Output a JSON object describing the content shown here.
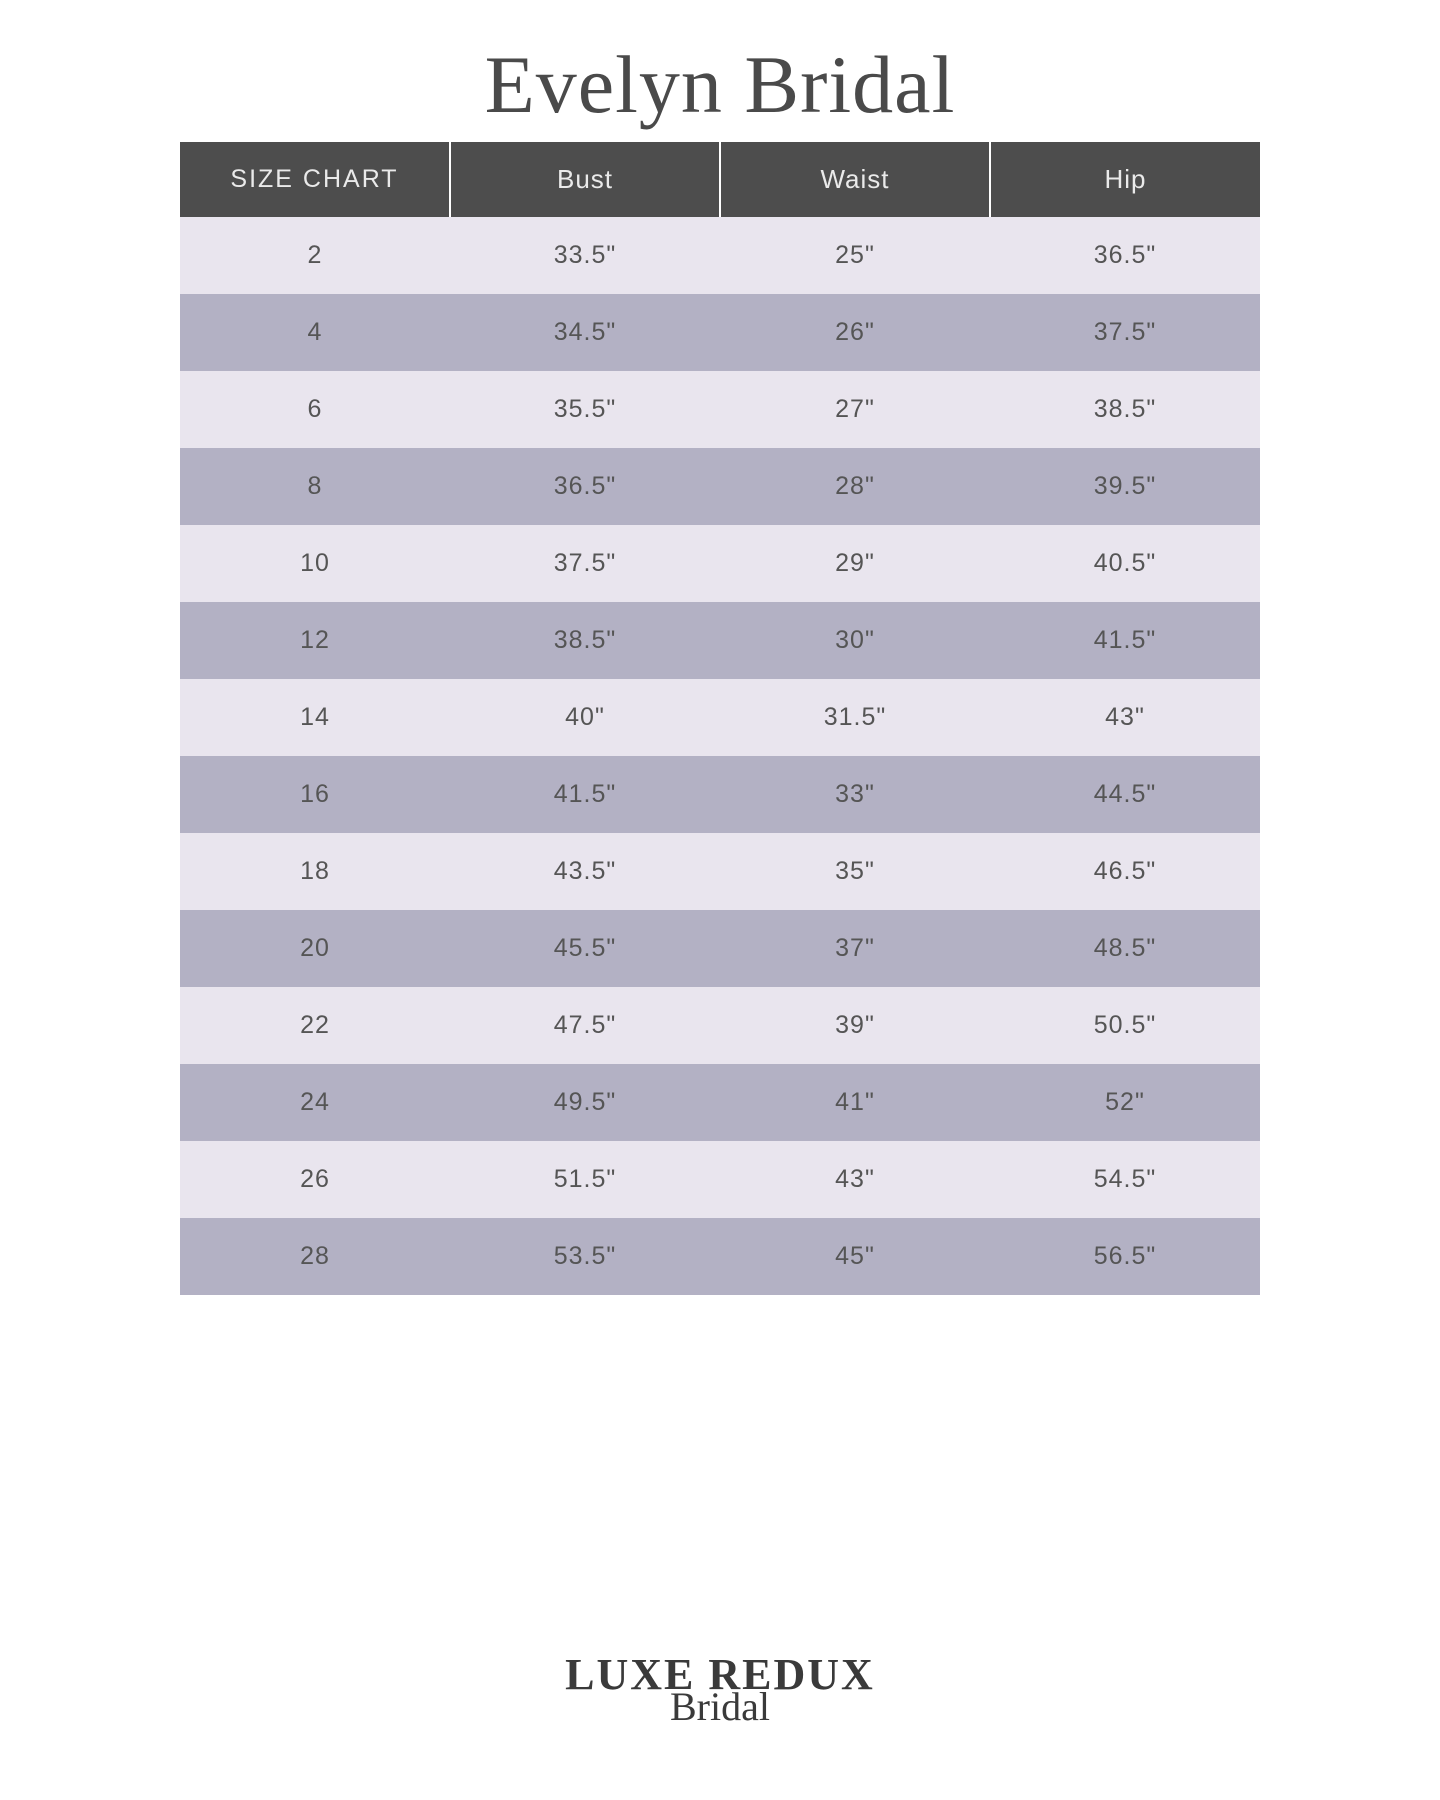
{
  "title": "Evelyn Bridal",
  "table": {
    "columns": [
      "SIZE CHART",
      "Bust",
      "Waist",
      "Hip"
    ],
    "rows": [
      [
        "2",
        "33.5\"",
        "25\"",
        "36.5\""
      ],
      [
        "4",
        "34.5\"",
        "26\"",
        "37.5\""
      ],
      [
        "6",
        "35.5\"",
        "27\"",
        "38.5\""
      ],
      [
        "8",
        "36.5\"",
        "28\"",
        "39.5\""
      ],
      [
        "10",
        "37.5\"",
        "29\"",
        "40.5\""
      ],
      [
        "12",
        "38.5\"",
        "30\"",
        "41.5\""
      ],
      [
        "14",
        "40\"",
        "31.5\"",
        "43\""
      ],
      [
        "16",
        "41.5\"",
        "33\"",
        "44.5\""
      ],
      [
        "18",
        "43.5\"",
        "35\"",
        "46.5\""
      ],
      [
        "20",
        "45.5\"",
        "37\"",
        "48.5\""
      ],
      [
        "22",
        "47.5\"",
        "39\"",
        "50.5\""
      ],
      [
        "24",
        "49.5\"",
        "41\"",
        "52\""
      ],
      [
        "26",
        "51.5\"",
        "43\"",
        "54.5\""
      ],
      [
        "28",
        "53.5\"",
        "45\"",
        "56.5\""
      ]
    ],
    "header_bg": "#4d4d4d",
    "header_text_color": "#eaeaea",
    "row_light_bg": "#e9e5ee",
    "row_dark_bg": "#b3b1c4",
    "cell_text_color": "#555555",
    "header_fontsize": 26,
    "cell_fontsize": 25
  },
  "footer": {
    "main": "LUXE REDUX",
    "script": "Bridal"
  },
  "page_bg": "#ffffff"
}
